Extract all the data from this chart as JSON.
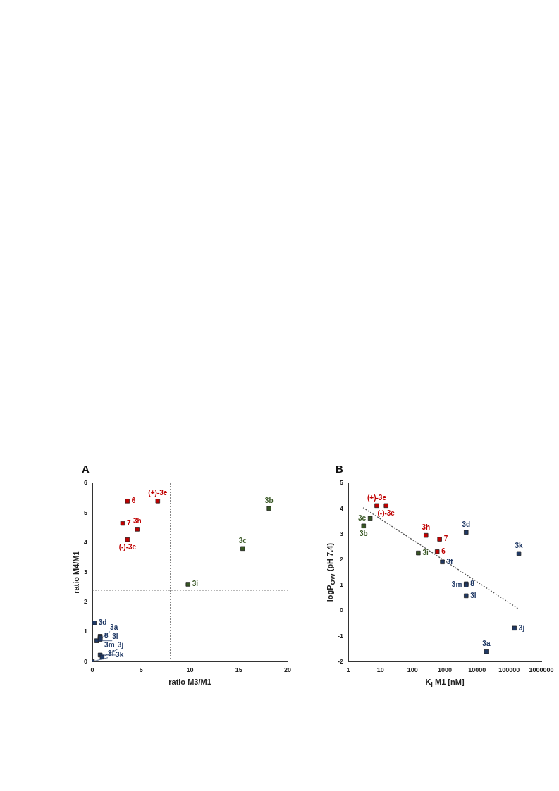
{
  "chart_data": [
    {
      "type": "scatter",
      "title": "A",
      "xlabel": "ratio M3/M1",
      "ylabel": "ratio M4/M1",
      "xlim": [
        0,
        20
      ],
      "xticks": [
        0,
        5,
        10,
        15,
        20
      ],
      "ylim": [
        0,
        6
      ],
      "yticks": [
        0,
        1,
        2,
        3,
        4,
        5,
        6
      ],
      "grid": false,
      "legend": false,
      "marker": "square",
      "ref_lines": [
        {
          "axis": "x",
          "value": 8,
          "line_style": "dotted",
          "color": "#555555"
        },
        {
          "axis": "y",
          "value": 2.4,
          "line_style": "dotted",
          "color": "#555555"
        }
      ],
      "series": [
        {
          "color": "#c00000",
          "x": [
            3.6,
            6.7,
            3.1,
            4.6,
            3.6
          ],
          "values": [
            5.4,
            5.4,
            4.65,
            4.45,
            4.1
          ]
        },
        {
          "color": "#375623",
          "x": [
            18.1,
            15.4,
            9.8
          ],
          "values": [
            5.15,
            3.8,
            2.6
          ]
        },
        {
          "color": "#1f3864",
          "x": [
            0,
            0.8,
            0.2,
            0.8,
            0.45,
            0.8,
            0.8,
            1.0
          ],
          "values": [
            0,
            0.85,
            1.3,
            0.8,
            0.7,
            0.75,
            0.22,
            0.15
          ]
        }
      ],
      "annotations": [
        {
          "text": "6",
          "x": 3.6,
          "y": 5.4
        },
        {
          "text": "(+)-3e",
          "x": 6.7,
          "y": 5.4
        },
        {
          "text": "7",
          "x": 3.1,
          "y": 4.65
        },
        {
          "text": "3h",
          "x": 4.6,
          "y": 4.45
        },
        {
          "text": "(-)-3e",
          "x": 3.6,
          "y": 4.1
        },
        {
          "text": "3b",
          "x": 18.1,
          "y": 5.15
        },
        {
          "text": "3c",
          "x": 15.4,
          "y": 3.8
        },
        {
          "text": "3i",
          "x": 9.8,
          "y": 2.6
        },
        {
          "text": "3f",
          "x": 0,
          "y": 0
        },
        {
          "text": "8",
          "x": 0.8,
          "y": 0.85
        },
        {
          "text": "3d",
          "x": 0.2,
          "y": 1.3
        },
        {
          "text": "3m",
          "x": 0.8,
          "y": 0.8
        },
        {
          "text": "3l",
          "x": 0.45,
          "y": 0.7
        },
        {
          "text": "3a",
          "x": 0.8,
          "y": 0.75
        },
        {
          "text": "3k",
          "x": 0.8,
          "y": 0.22
        },
        {
          "text": "3j",
          "x": 1.0,
          "y": 0.15
        }
      ]
    },
    {
      "type": "scatter",
      "title": "B",
      "xlabel": "K$_{i}$ M1 [nM]",
      "ylabel": "logP$_{OW}$ (pH 7.4)",
      "log": "x",
      "xlim": [
        1,
        1000000
      ],
      "xticks": [
        1,
        10,
        100,
        1000,
        10000,
        100000,
        1000000
      ],
      "ylim": [
        -2,
        5
      ],
      "yticks": [
        -2,
        -1,
        0,
        1,
        2,
        3,
        4,
        5
      ],
      "grid": false,
      "legend": false,
      "marker": "square",
      "series": [
        {
          "color": "#c00000",
          "x": [
            7.7,
            15,
            260,
            690,
            580
          ],
          "values": [
            4.12,
            4.12,
            2.95,
            2.8,
            2.31
          ]
        },
        {
          "color": "#375623",
          "x": [
            3,
            4.8,
            150
          ],
          "values": [
            3.32,
            3.62,
            2.26
          ]
        },
        {
          "color": "#1f3864",
          "x": [
            840,
            4600,
            200000,
            4600,
            4600,
            4600,
            146000,
            19500
          ],
          "values": [
            1.91,
            3.07,
            2.24,
            1.05,
            1.0,
            0.58,
            -0.69,
            -1.61
          ]
        },
        {
          "type": "line",
          "color": "#555555",
          "line_style": "dotted",
          "marker": "none",
          "x": [
            2.9,
            200000
          ],
          "values": [
            4.04,
            0.06
          ]
        }
      ],
      "annotations": [
        {
          "text": "(+)-3e",
          "x": 7.7,
          "y": 4.12
        },
        {
          "text": "(-)-3e",
          "x": 15,
          "y": 4.12
        },
        {
          "text": "3h",
          "x": 260,
          "y": 2.95
        },
        {
          "text": "7",
          "x": 690,
          "y": 2.8
        },
        {
          "text": "6",
          "x": 580,
          "y": 2.31
        },
        {
          "text": "3b",
          "x": 3,
          "y": 3.32
        },
        {
          "text": "3c",
          "x": 4.8,
          "y": 3.62
        },
        {
          "text": "3i",
          "x": 150,
          "y": 2.26
        },
        {
          "text": "3f",
          "x": 840,
          "y": 1.91
        },
        {
          "text": "3d",
          "x": 4600,
          "y": 3.07
        },
        {
          "text": "3k",
          "x": 200000,
          "y": 2.24
        },
        {
          "text": "8",
          "x": 4600,
          "y": 1.05
        },
        {
          "text": "3m",
          "x": 4600,
          "y": 1.0
        },
        {
          "text": "3l",
          "x": 4600,
          "y": 0.58
        },
        {
          "text": "3j",
          "x": 146000,
          "y": -0.69
        },
        {
          "text": "3a",
          "x": 19500,
          "y": -1.61
        }
      ]
    }
  ]
}
